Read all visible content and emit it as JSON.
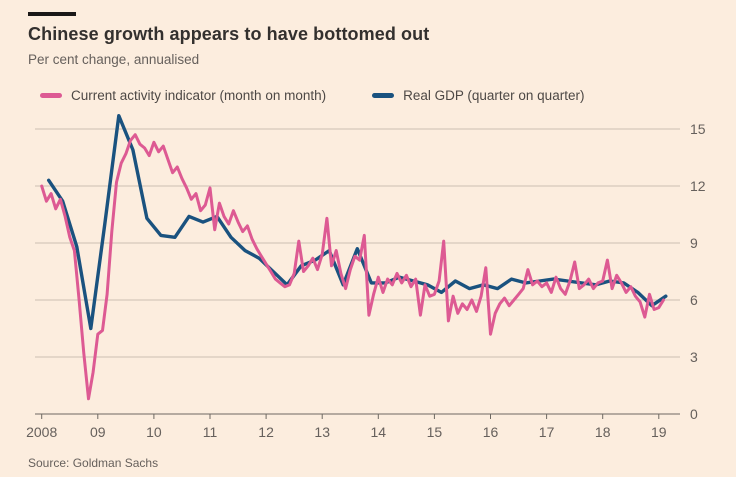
{
  "colors": {
    "background": "#fcedde",
    "title_text": "#33302e",
    "muted_text": "#66605c",
    "grid": "#cbbfb3",
    "axis": "#6e6862",
    "top_rule": "#1a1817",
    "cai_pink": "#dd5a93",
    "gdp_blue": "#1a527f"
  },
  "chart_data": {
    "type": "line",
    "title": "Chinese growth appears to have bottomed out",
    "subtitle": "Per cent change, annualised",
    "source": "Source: Goldman Sachs",
    "xlabel": "",
    "ylabel": "",
    "ylim": [
      0,
      15
    ],
    "yticks": [
      0,
      3,
      6,
      9,
      12,
      15
    ],
    "ytick_side": "right",
    "grid": "horizontal",
    "legend_position": "top",
    "x_tick_labels": [
      "2008",
      "09",
      "10",
      "11",
      "12",
      "13",
      "14",
      "15",
      "16",
      "17",
      "18",
      "19"
    ],
    "x_range_years": [
      2008.0,
      2019.17
    ],
    "series": [
      {
        "name": "Current activity indicator (month on month)",
        "color": "#dd5a93",
        "interval": "monthly",
        "start": "2008-01",
        "values": [
          12.0,
          11.2,
          11.6,
          10.8,
          11.3,
          10.4,
          9.3,
          8.6,
          6.0,
          3.2,
          0.8,
          2.2,
          4.2,
          4.4,
          6.3,
          9.6,
          12.2,
          13.2,
          13.7,
          14.4,
          14.7,
          14.2,
          14.0,
          13.6,
          14.3,
          13.8,
          14.1,
          13.4,
          12.7,
          13.0,
          12.4,
          11.9,
          11.3,
          11.6,
          10.7,
          11.0,
          11.9,
          9.7,
          11.1,
          10.4,
          10.0,
          10.7,
          10.1,
          9.6,
          9.9,
          9.2,
          8.7,
          8.3,
          7.9,
          7.5,
          7.1,
          6.9,
          6.7,
          6.8,
          7.4,
          9.1,
          7.5,
          7.8,
          8.2,
          7.6,
          8.4,
          10.3,
          7.8,
          8.6,
          7.4,
          6.6,
          7.6,
          8.3,
          8.1,
          9.4,
          5.2,
          6.3,
          7.2,
          6.4,
          7.1,
          6.8,
          7.4,
          6.9,
          7.3,
          6.7,
          7.1,
          5.2,
          6.8,
          6.2,
          6.3,
          7.0,
          9.1,
          4.9,
          6.2,
          5.3,
          5.8,
          5.5,
          6.0,
          5.4,
          6.2,
          7.7,
          4.2,
          5.3,
          5.8,
          6.1,
          5.7,
          6.0,
          6.3,
          6.6,
          7.6,
          6.8,
          7.0,
          6.7,
          6.9,
          6.4,
          7.2,
          6.6,
          6.3,
          7.0,
          8.0,
          6.6,
          6.8,
          7.1,
          6.6,
          6.9,
          7.0,
          8.1,
          6.6,
          7.3,
          6.9,
          6.4,
          6.7,
          6.2,
          5.9,
          5.1,
          6.3,
          5.5,
          5.6,
          6.0
        ]
      },
      {
        "name": "Real GDP (quarter on quarter)",
        "color": "#1a527f",
        "interval": "quarterly",
        "start": "2008-Q1",
        "values": [
          12.3,
          11.2,
          8.8,
          4.5,
          10.0,
          15.7,
          13.9,
          10.3,
          9.4,
          9.3,
          10.4,
          10.1,
          10.4,
          9.3,
          8.6,
          8.2,
          7.5,
          6.8,
          7.8,
          8.1,
          8.6,
          6.8,
          8.7,
          6.9,
          6.9,
          7.2,
          7.0,
          6.8,
          6.4,
          7.0,
          6.6,
          6.8,
          6.6,
          7.1,
          6.9,
          7.0,
          7.1,
          7.0,
          6.9,
          6.8,
          7.0,
          6.9,
          6.4,
          5.7,
          6.2
        ]
      }
    ]
  }
}
